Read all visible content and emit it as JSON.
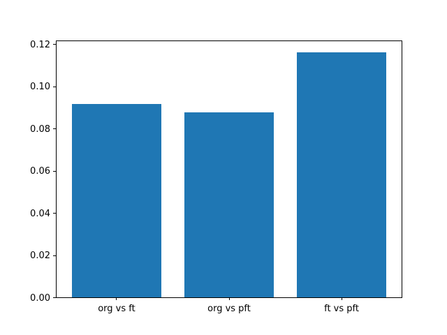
{
  "figure": {
    "background": "#ffffff",
    "spine_color": "#000000",
    "text_color": "#000000"
  },
  "chart_data": {
    "type": "bar",
    "categories": [
      "org vs ft",
      "org vs pft",
      "ft vs pft"
    ],
    "values": [
      0.0916,
      0.0878,
      0.1163
    ],
    "title": "",
    "xlabel": "",
    "ylabel": "",
    "ylim": [
      0,
      0.1221
    ],
    "xlim": [
      -0.54,
      2.54
    ],
    "yticks": [
      0.0,
      0.02,
      0.04,
      0.06,
      0.08,
      0.1,
      0.12
    ],
    "ytick_labels": [
      "0.00",
      "0.02",
      "0.04",
      "0.06",
      "0.08",
      "0.10",
      "0.12"
    ],
    "bar_width": 0.8,
    "bar_color": "#1f77b4",
    "grid": false,
    "legend": null
  }
}
